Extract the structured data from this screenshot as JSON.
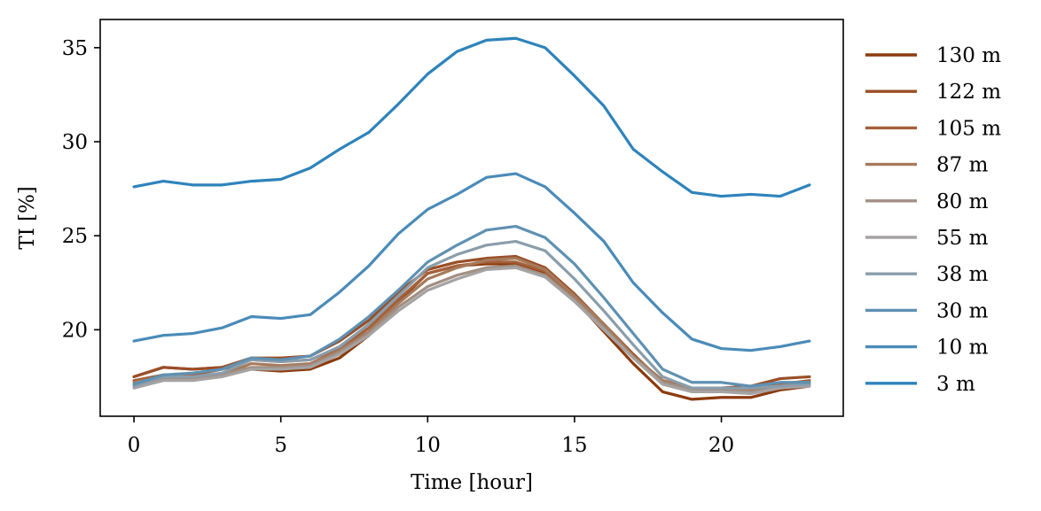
{
  "chart_data": {
    "type": "line",
    "xlabel": "Time [hour]",
    "ylabel": "TI [%]",
    "xlim": [
      -1.15,
      24.15
    ],
    "ylim": [
      15.4,
      36.5
    ],
    "xticks": [
      0,
      5,
      10,
      15,
      20
    ],
    "yticks": [
      20,
      25,
      30,
      35
    ],
    "grid": false,
    "legend_position": "outside-right",
    "x": [
      0,
      1,
      2,
      3,
      4,
      5,
      6,
      7,
      8,
      9,
      10,
      11,
      12,
      13,
      14,
      15,
      16,
      17,
      18,
      19,
      20,
      21,
      22,
      23
    ],
    "series": [
      {
        "name": "130 m",
        "color": "#8c3a0c",
        "values": [
          17.5,
          18.0,
          17.9,
          18.0,
          17.9,
          17.8,
          17.9,
          18.5,
          19.7,
          21.5,
          23.0,
          23.4,
          23.5,
          23.5,
          23.0,
          21.6,
          19.9,
          18.2,
          16.7,
          16.3,
          16.4,
          16.4,
          16.8,
          17.0
        ]
      },
      {
        "name": "122 m",
        "color": "#9a4e26",
        "values": [
          17.5,
          18.0,
          17.9,
          18.0,
          18.5,
          18.5,
          18.6,
          19.4,
          20.5,
          22.0,
          23.2,
          23.6,
          23.8,
          23.9,
          23.3,
          21.9,
          20.3,
          18.7,
          17.2,
          16.8,
          16.9,
          17.0,
          17.4,
          17.5
        ]
      },
      {
        "name": "105 m",
        "color": "#a4603a",
        "values": [
          17.3,
          17.6,
          17.6,
          17.9,
          18.4,
          18.3,
          18.4,
          19.0,
          20.1,
          21.6,
          23.0,
          23.4,
          23.6,
          23.6,
          23.1,
          21.7,
          20.2,
          18.6,
          17.3,
          16.9,
          16.9,
          16.8,
          17.1,
          17.3
        ]
      },
      {
        "name": "87 m",
        "color": "#a67a5c",
        "values": [
          17.2,
          17.5,
          17.5,
          17.6,
          18.2,
          18.1,
          18.2,
          18.9,
          19.9,
          21.4,
          22.7,
          23.3,
          23.7,
          23.8,
          23.2,
          21.8,
          20.3,
          18.6,
          17.3,
          16.8,
          16.9,
          16.8,
          17.0,
          17.2
        ]
      },
      {
        "name": "80 m",
        "color": "#a28f83",
        "values": [
          17.1,
          17.4,
          17.4,
          17.6,
          18.0,
          18.0,
          18.1,
          18.8,
          19.8,
          21.2,
          22.3,
          22.9,
          23.3,
          23.4,
          22.9,
          21.6,
          20.1,
          18.5,
          17.2,
          16.8,
          16.8,
          16.7,
          16.9,
          17.1
        ]
      },
      {
        "name": "55 m",
        "color": "#a6a3a3",
        "values": [
          16.9,
          17.3,
          17.3,
          17.5,
          17.9,
          17.9,
          18.0,
          18.7,
          19.7,
          21.0,
          22.1,
          22.7,
          23.2,
          23.3,
          22.8,
          21.5,
          20.0,
          18.5,
          17.1,
          16.7,
          16.7,
          16.6,
          16.9,
          17.0
        ]
      },
      {
        "name": "38 m",
        "color": "#8a9dab",
        "values": [
          17.0,
          17.5,
          17.5,
          17.7,
          18.4,
          18.3,
          18.4,
          19.1,
          20.3,
          21.8,
          23.3,
          24.0,
          24.5,
          24.7,
          24.2,
          22.7,
          21.0,
          19.2,
          17.5,
          16.9,
          16.9,
          16.9,
          17.0,
          17.1
        ]
      },
      {
        "name": "30 m",
        "color": "#5f91b2",
        "values": [
          17.1,
          17.6,
          17.7,
          17.9,
          18.5,
          18.4,
          18.6,
          19.5,
          20.7,
          22.1,
          23.6,
          24.5,
          25.3,
          25.5,
          24.9,
          23.5,
          21.7,
          19.8,
          17.9,
          17.2,
          17.2,
          17.0,
          17.2,
          17.2
        ]
      },
      {
        "name": "10 m",
        "color": "#4a8bb8",
        "values": [
          19.4,
          19.7,
          19.8,
          20.1,
          20.7,
          20.6,
          20.8,
          22.0,
          23.4,
          25.1,
          26.4,
          27.2,
          28.1,
          28.3,
          27.6,
          26.2,
          24.7,
          22.5,
          20.9,
          19.5,
          19.0,
          18.9,
          19.1,
          19.4
        ]
      },
      {
        "name": "3 m",
        "color": "#2e83bb",
        "values": [
          27.6,
          27.9,
          27.7,
          27.7,
          27.9,
          28.0,
          28.6,
          29.6,
          30.5,
          32.0,
          33.6,
          34.8,
          35.4,
          35.5,
          35.0,
          33.5,
          31.9,
          29.6,
          28.4,
          27.3,
          27.1,
          27.2,
          27.1,
          27.7
        ]
      }
    ]
  }
}
